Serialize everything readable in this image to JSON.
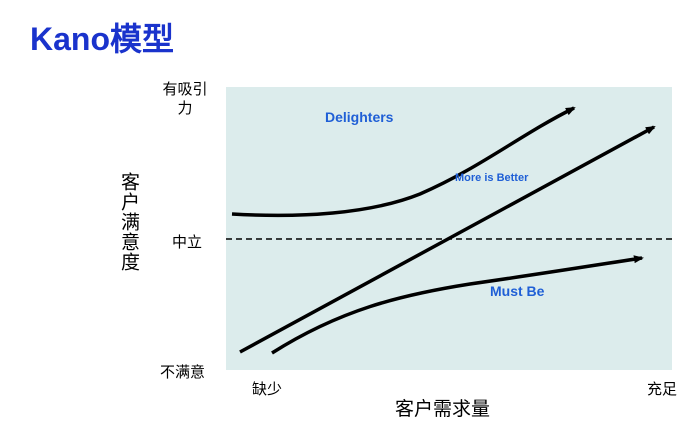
{
  "title": "Kano模型",
  "y_axis": {
    "title": "客户满意度",
    "labels": [
      "有吸引力",
      "中立",
      "不满意"
    ]
  },
  "x_axis": {
    "title": "客户需求量",
    "labels": [
      "缺少",
      "充足"
    ]
  },
  "curves": [
    {
      "label": "Delighters"
    },
    {
      "label": "More is Better"
    },
    {
      "label": "Must Be"
    }
  ]
}
